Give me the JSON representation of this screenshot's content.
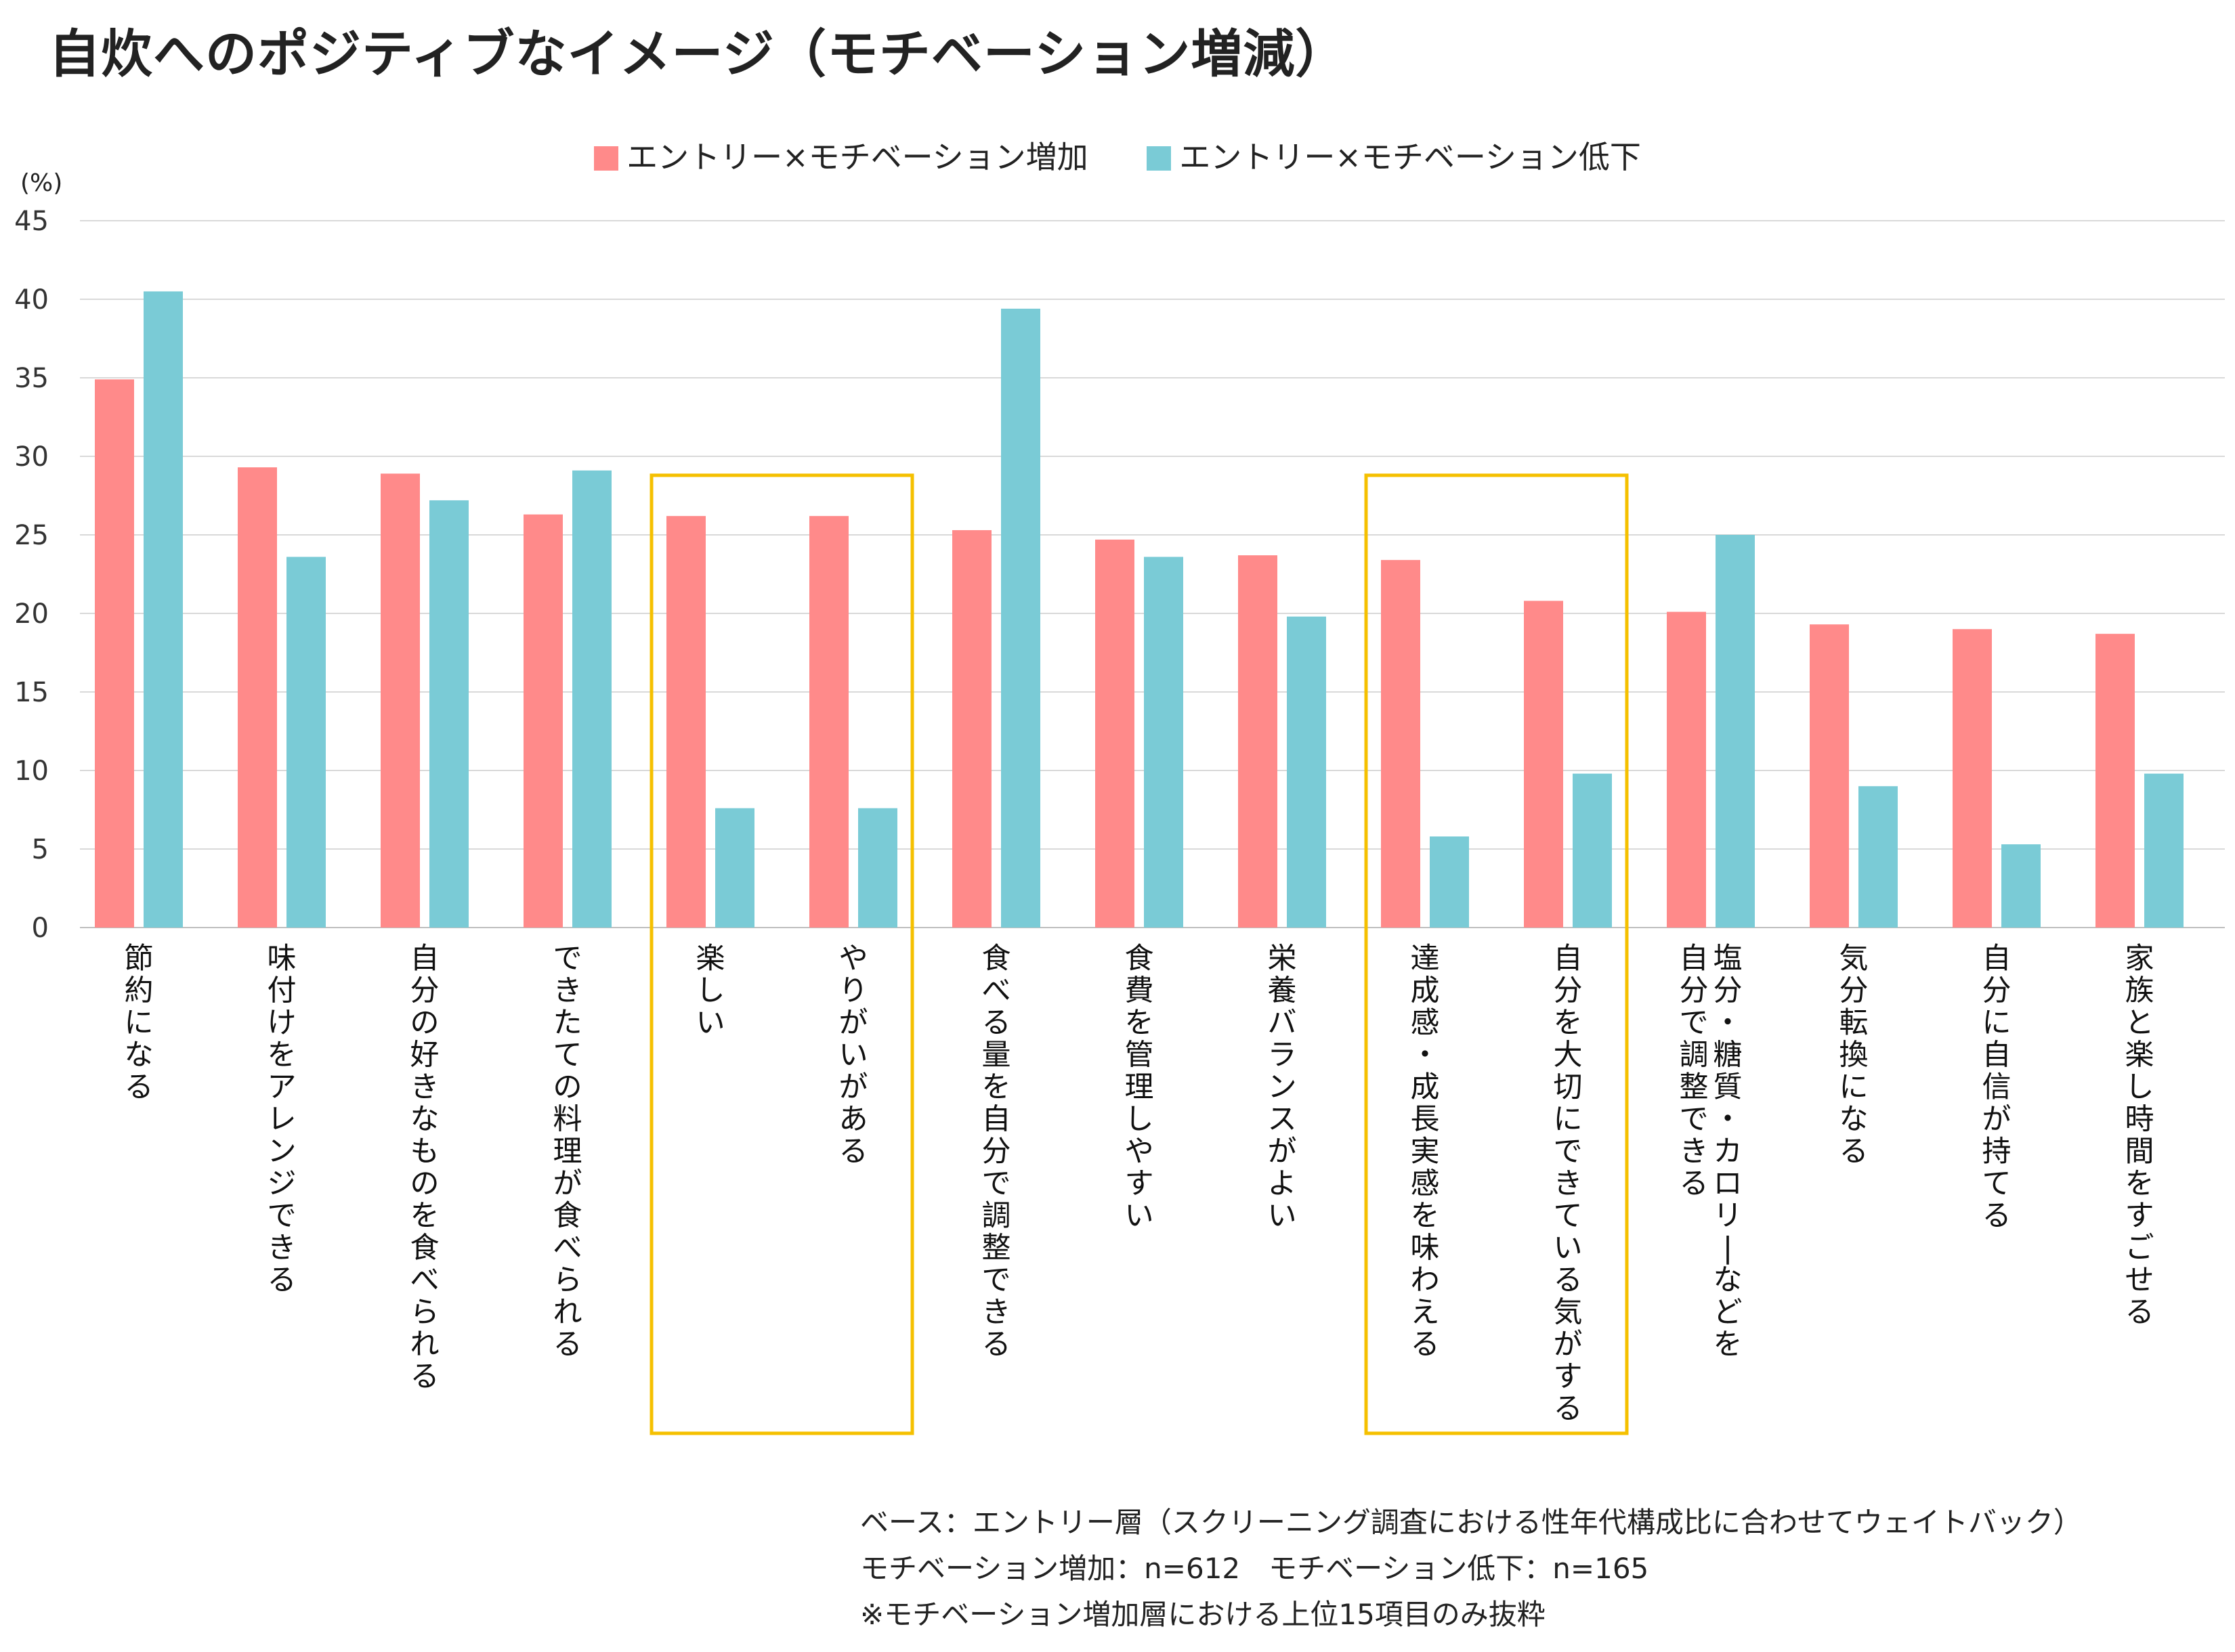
{
  "title": "自炊へのポジティブなイメージ（モチベーション増減）",
  "unit_label": "(%)",
  "colors": {
    "increase": "#FF8A8A",
    "decrease": "#7ACBD6",
    "highlight": "#F5C000",
    "grid": "#D9D9D9"
  },
  "notes": [
    "ベース：エントリー層（スクリーニング調査における性年代構成比に合わせてウェイトバック）",
    "モチベーション増加：n=612　モチベーション低下：n=165",
    "※モチベーション増加層における上位15項目のみ抜粋"
  ],
  "chart_data": {
    "type": "bar",
    "title": "自炊へのポジティブなイメージ（モチベーション増減）",
    "ylabel": "(%)",
    "ylim": [
      0,
      45
    ],
    "yticks": [
      0,
      5,
      10,
      15,
      20,
      25,
      30,
      35,
      40,
      45
    ],
    "grid": true,
    "legend_position": "top",
    "categories": [
      [
        "節約になる"
      ],
      [
        "味付けをアレンジできる"
      ],
      [
        "自分の好きなものを食べられる"
      ],
      [
        "できたての料理が食べられる"
      ],
      [
        "楽しい"
      ],
      [
        "やりがいがある"
      ],
      [
        "食べる量を自分で調整できる"
      ],
      [
        "食費を管理しやすい"
      ],
      [
        "栄養バランスがよい"
      ],
      [
        "達成感・成長実感を味わえる"
      ],
      [
        "自分を大切にできている気がする"
      ],
      [
        "塩分・糖質・カロリーなどを",
        "自分で調整できる"
      ],
      [
        "気分転換になる"
      ],
      [
        "自分に自信が持てる"
      ],
      [
        "家族と楽し時間をすごせる"
      ]
    ],
    "series": [
      {
        "name": "エントリー×モチベーション増加",
        "color": "#FF8A8A",
        "values": [
          34.9,
          29.3,
          28.9,
          26.3,
          26.2,
          26.2,
          25.3,
          24.7,
          23.7,
          23.4,
          20.8,
          20.1,
          19.3,
          19.0,
          18.7
        ]
      },
      {
        "name": "エントリー×モチベーション低下",
        "color": "#7ACBD6",
        "values": [
          40.5,
          23.6,
          27.2,
          29.1,
          7.6,
          7.6,
          39.4,
          23.6,
          19.8,
          5.8,
          9.8,
          25.0,
          9.0,
          5.3,
          9.8
        ]
      }
    ],
    "highlighted_groups": [
      [
        4,
        5
      ],
      [
        9,
        10
      ]
    ]
  }
}
